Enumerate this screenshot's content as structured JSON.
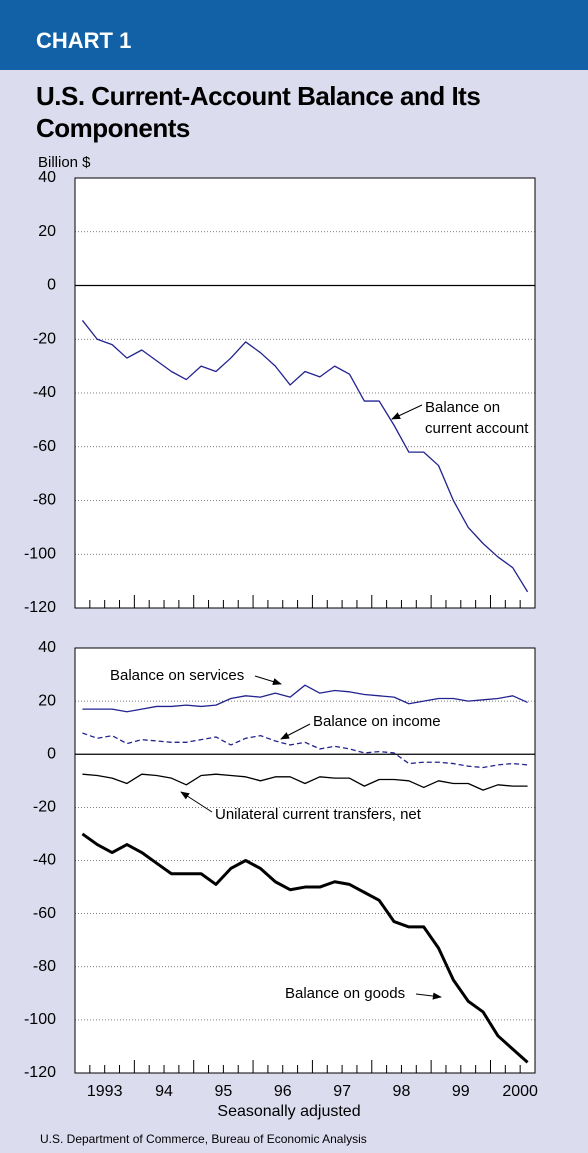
{
  "header": "CHART 1",
  "source": "U.S. Department of Commerce, Bureau of Economic Analysis",
  "chart_data": [
    {
      "type": "line",
      "title": "U.S. Current-Account Balance and Its Components",
      "ylabel": "Billion $",
      "ylim": [
        -120,
        40
      ],
      "yticks": [
        -120,
        -100,
        -80,
        -60,
        -40,
        -20,
        0,
        20,
        40
      ],
      "grid": true,
      "series": [
        {
          "name": "Balance on current account",
          "color": "#23238f",
          "values": [
            -13,
            -20,
            -22,
            -27,
            -24,
            -28,
            -32,
            -35,
            -30,
            -32,
            -27,
            -21,
            -25,
            -30,
            -37,
            -32,
            -34,
            -30,
            -33,
            -43,
            -43,
            -52,
            -62,
            -62,
            -67,
            -80,
            -90,
            -96,
            -101,
            -105,
            -114
          ]
        }
      ]
    },
    {
      "type": "line",
      "xlabel": "Seasonally adjusted",
      "categories": [
        "1993",
        null,
        null,
        null,
        "94",
        null,
        null,
        null,
        "95",
        null,
        null,
        null,
        "96",
        null,
        null,
        null,
        "97",
        null,
        null,
        null,
        "98",
        null,
        null,
        null,
        "99",
        null,
        null,
        null,
        "2000",
        null,
        null
      ],
      "ylim": [
        -120,
        40
      ],
      "yticks": [
        -120,
        -100,
        -80,
        -60,
        -40,
        -20,
        0,
        20,
        40
      ],
      "grid": true,
      "series": [
        {
          "name": "Balance on services",
          "color": "#23238f",
          "values": [
            17,
            17,
            17,
            16,
            17,
            18,
            18,
            18.5,
            18,
            18.5,
            21,
            22,
            21.5,
            23,
            21.5,
            26,
            23,
            24,
            23.5,
            22.5,
            22,
            21.5,
            19,
            20,
            21,
            21,
            20,
            20.5,
            21,
            22,
            19.5
          ]
        },
        {
          "name": "Balance on income",
          "color": "#23238f",
          "style": "dashed",
          "values": [
            8,
            6,
            7,
            4,
            5.5,
            5,
            4.5,
            4.5,
            5.5,
            6.5,
            3.5,
            6,
            7,
            5,
            3.5,
            4.5,
            2,
            3,
            2,
            0.5,
            1,
            0.5,
            -3.5,
            -3,
            -3,
            -3.5,
            -4.5,
            -5,
            -4,
            -3.5,
            -4
          ]
        },
        {
          "name": "Unilateral current transfers, net",
          "color": "#000000",
          "values": [
            -7.5,
            -8,
            -9,
            -11,
            -7.5,
            -8,
            -9,
            -11.5,
            -8,
            -7.5,
            -8,
            -8.5,
            -10,
            -8.5,
            -8.5,
            -11,
            -8.5,
            -9,
            -9,
            -12,
            -9.5,
            -9.5,
            -10,
            -12.5,
            -10,
            -11,
            -11,
            -13.5,
            -11.5,
            -12,
            -12
          ]
        },
        {
          "name": "Balance on goods",
          "color": "#000000",
          "line_width": 3,
          "values": [
            -30,
            -34,
            -37,
            -34,
            -37,
            -41,
            -45,
            -45,
            -45,
            -49,
            -43,
            -40,
            -43,
            -48,
            -51,
            -50,
            -50,
            -48,
            -49,
            -52,
            -55,
            -63,
            -65,
            -65,
            -73,
            -85,
            -93,
            -97,
            -106,
            -111,
            -116
          ]
        }
      ]
    }
  ]
}
